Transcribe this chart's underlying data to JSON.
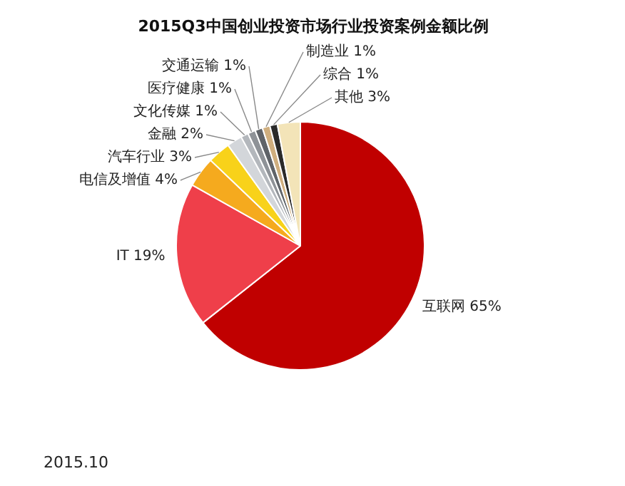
{
  "chart_data": {
    "type": "pie",
    "title": "2015Q3中国创业投资市场行业投资案例金额比例",
    "categories": [
      "互联网",
      "IT",
      "电信及增值",
      "汽车行业",
      "金融",
      "文化传媒",
      "医疗健康",
      "交通运输",
      "制造业",
      "综合",
      "其他"
    ],
    "values": [
      65,
      19,
      4,
      3,
      2,
      1,
      1,
      1,
      1,
      1,
      3
    ],
    "value_labels": [
      "65%",
      "19%",
      "4%",
      "3%",
      "2%",
      "1%",
      "1%",
      "1%",
      "1%",
      "1%",
      "3%"
    ],
    "colors": [
      "#c00000",
      "#ef3f4a",
      "#f5aa1e",
      "#f8d21a",
      "#d3d6da",
      "#b3b7bc",
      "#8e9297",
      "#5f6368",
      "#cfae7e",
      "#2a2a2a",
      "#f3e4b8"
    ],
    "annotations": [
      "2015.10"
    ]
  }
}
